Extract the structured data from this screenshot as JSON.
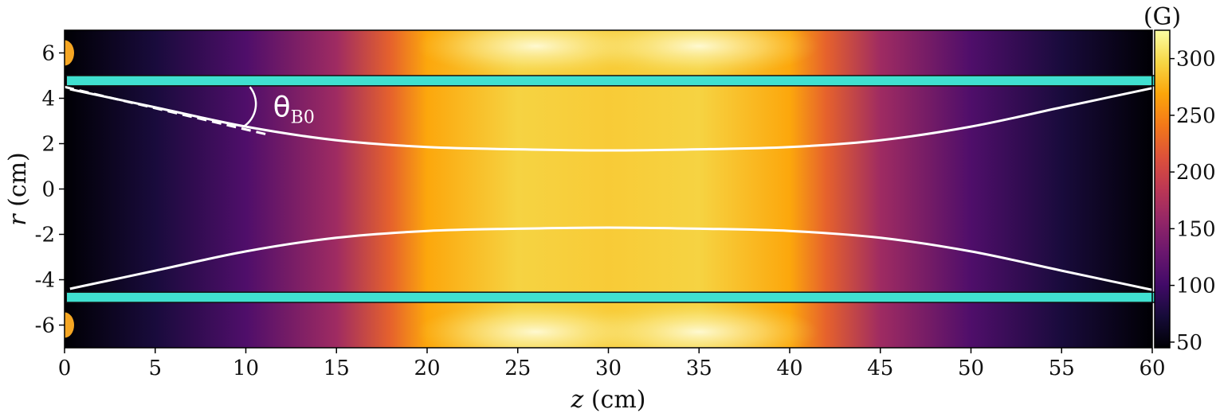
{
  "chart_data": {
    "type": "heatmap",
    "title": "",
    "xlabel": {
      "var": "z",
      "unit": "(cm)"
    },
    "ylabel": {
      "var": "r",
      "unit": "(cm)"
    },
    "xlim": [
      0,
      60
    ],
    "ylim": [
      -7,
      7
    ],
    "xticks": [
      0,
      5,
      10,
      15,
      20,
      25,
      30,
      35,
      40,
      45,
      50,
      55,
      60
    ],
    "yticks": [
      6,
      4,
      2,
      0,
      -2,
      -4,
      -6
    ],
    "colorbar": {
      "label": "(G)",
      "colormap": "inferno",
      "range": [
        45,
        325
      ],
      "ticks": [
        300,
        250,
        200,
        150,
        100,
        50
      ]
    },
    "field_profile": {
      "z": [
        0,
        5,
        10,
        15,
        18,
        20,
        25,
        30,
        35,
        40,
        42,
        45,
        50,
        55,
        60
      ],
      "B_on_axis": [
        45,
        75,
        110,
        165,
        225,
        270,
        295,
        290,
        295,
        270,
        225,
        165,
        110,
        75,
        45
      ]
    },
    "field_lines": [
      {
        "z": [
          0.3,
          5,
          10,
          15,
          20,
          25,
          30,
          35,
          40,
          45,
          50,
          55,
          60
        ],
        "r": [
          4.4,
          3.6,
          2.75,
          2.15,
          1.85,
          1.75,
          1.7,
          1.75,
          1.85,
          2.15,
          2.75,
          3.6,
          4.45
        ]
      },
      {
        "z": [
          0.3,
          5,
          10,
          15,
          20,
          25,
          30,
          35,
          40,
          45,
          50,
          55,
          60
        ],
        "r": [
          -4.4,
          -3.6,
          -2.75,
          -2.15,
          -1.85,
          -1.75,
          -1.7,
          -1.75,
          -1.85,
          -2.15,
          -2.75,
          -3.6,
          -4.45
        ]
      }
    ],
    "tangent_line": {
      "z": [
        0,
        11.2
      ],
      "r": [
        4.5,
        2.4
      ]
    },
    "walls": [
      {
        "z": [
          0.1,
          60.5
        ],
        "r": [
          4.55,
          5.0
        ],
        "color": "#40e0d0"
      },
      {
        "z": [
          0.1,
          60.5
        ],
        "r": [
          -5.0,
          -4.55
        ],
        "color": "#40e0d0"
      }
    ],
    "coils": [
      {
        "z": 0,
        "r": 6.0,
        "color": "#f5a623"
      },
      {
        "z": 0,
        "r": -6.0,
        "color": "#f5a623"
      }
    ],
    "annotations": [
      {
        "text": "θ",
        "subscript": "B0",
        "z": 11.5,
        "r": 3.55,
        "color": "#ffffff"
      }
    ]
  }
}
